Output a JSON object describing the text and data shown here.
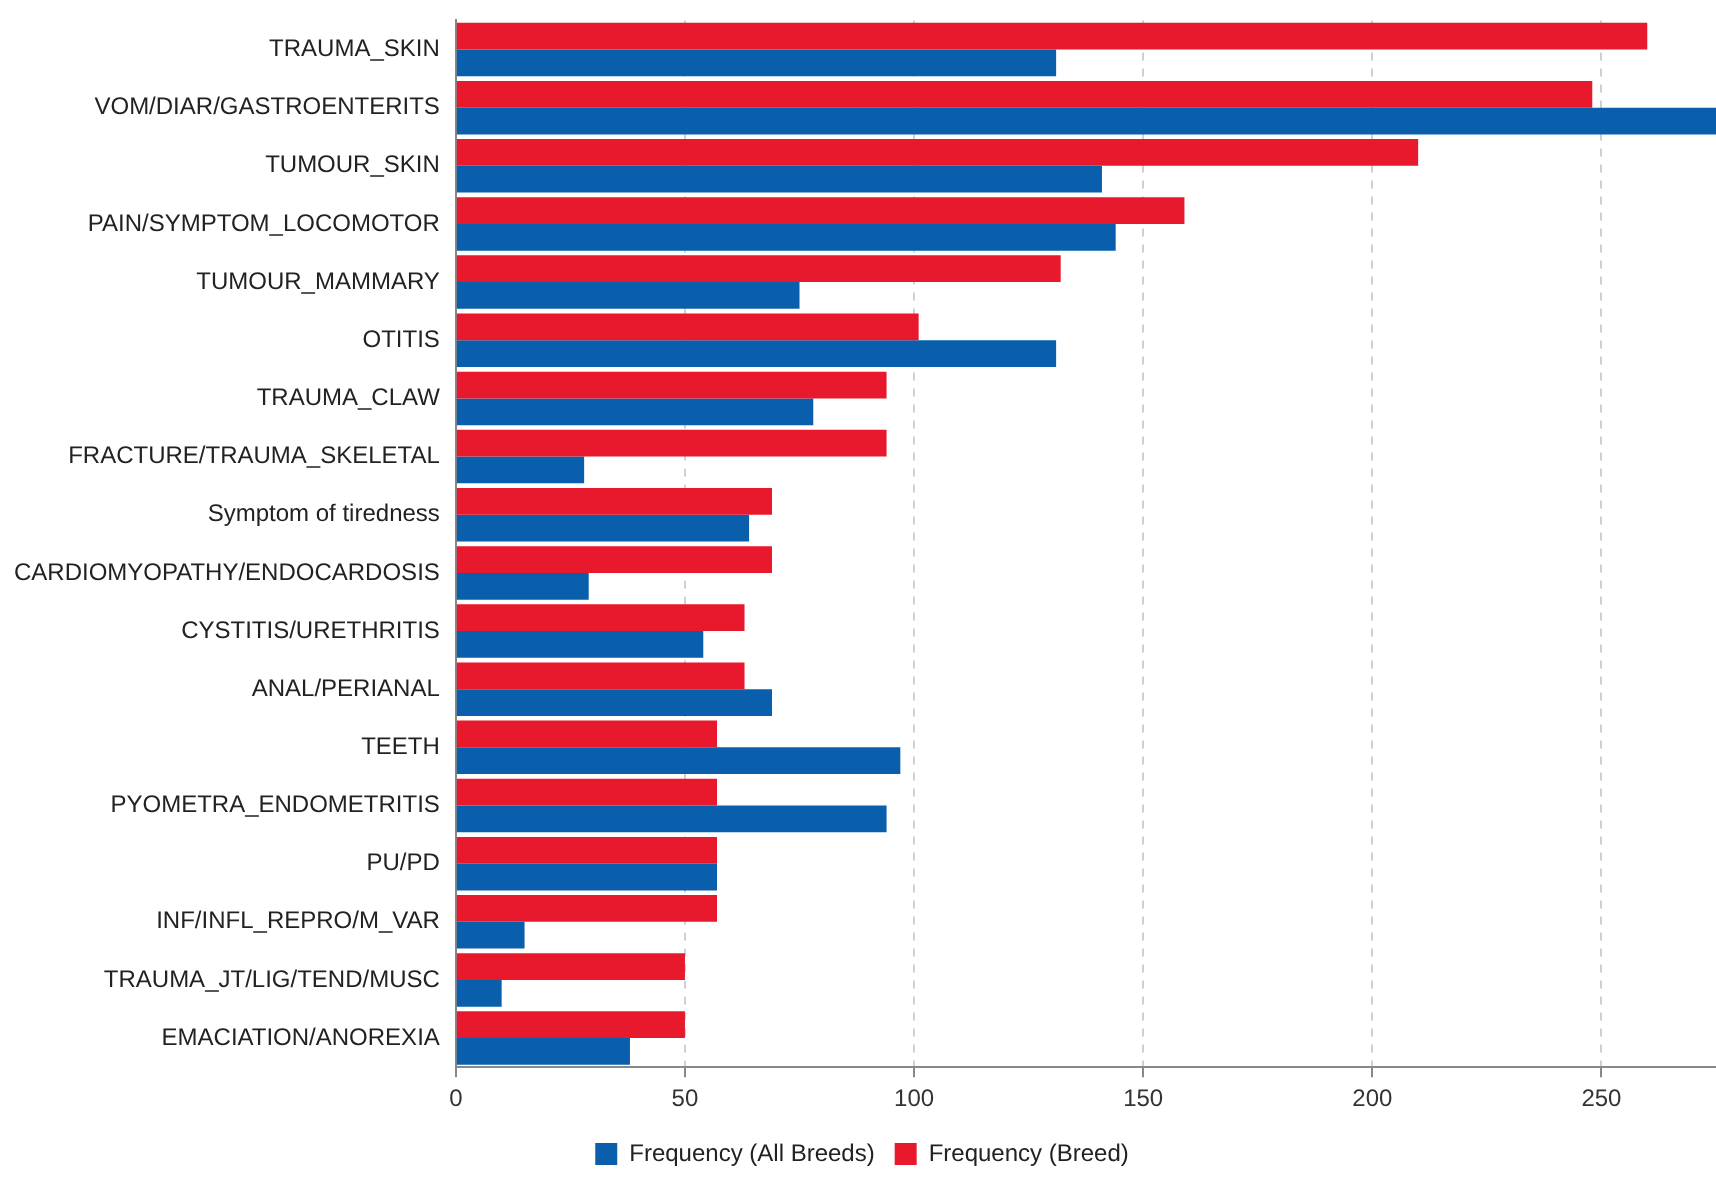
{
  "chart_data": {
    "type": "bar",
    "orientation": "horizontal",
    "categories": [
      "TRAUMA_SKIN",
      "VOM/DIAR/GASTROENTERITS",
      "TUMOUR_SKIN",
      "PAIN/SYMPTOM_LOCOMOTOR",
      "TUMOUR_MAMMARY",
      "OTITIS",
      "TRAUMA_CLAW",
      "FRACTURE/TRAUMA_SKELETAL",
      "Symptom of tiredness",
      "CARDIOMYOPATHY/ENDOCARDOSIS",
      "CYSTITIS/URETHRITIS",
      "ANAL/PERIANAL",
      "TEETH",
      "PYOMETRA_ENDOMETRITIS",
      "PU/PD",
      "INF/INFL_REPRO/M_VAR",
      "TRAUMA_JT/LIG/TEND/MUSC",
      "EMACIATION/ANOREXIA"
    ],
    "series": [
      {
        "name": "Frequency (Breed)",
        "color": "#e8192c",
        "values": [
          260,
          248,
          210,
          159,
          132,
          101,
          94,
          94,
          69,
          69,
          63,
          63,
          57,
          57,
          57,
          57,
          50,
          50
        ]
      },
      {
        "name": "Frequency (All Breeds)",
        "color": "#0a5fad",
        "values": [
          131,
          275,
          141,
          144,
          75,
          131,
          78,
          28,
          64,
          29,
          54,
          69,
          97,
          94,
          57,
          15,
          10,
          38
        ]
      }
    ],
    "xlim": [
      0,
      275
    ],
    "xticks": [
      0,
      50,
      100,
      150,
      200,
      250
    ],
    "grid": "x",
    "legend": "bottom"
  }
}
